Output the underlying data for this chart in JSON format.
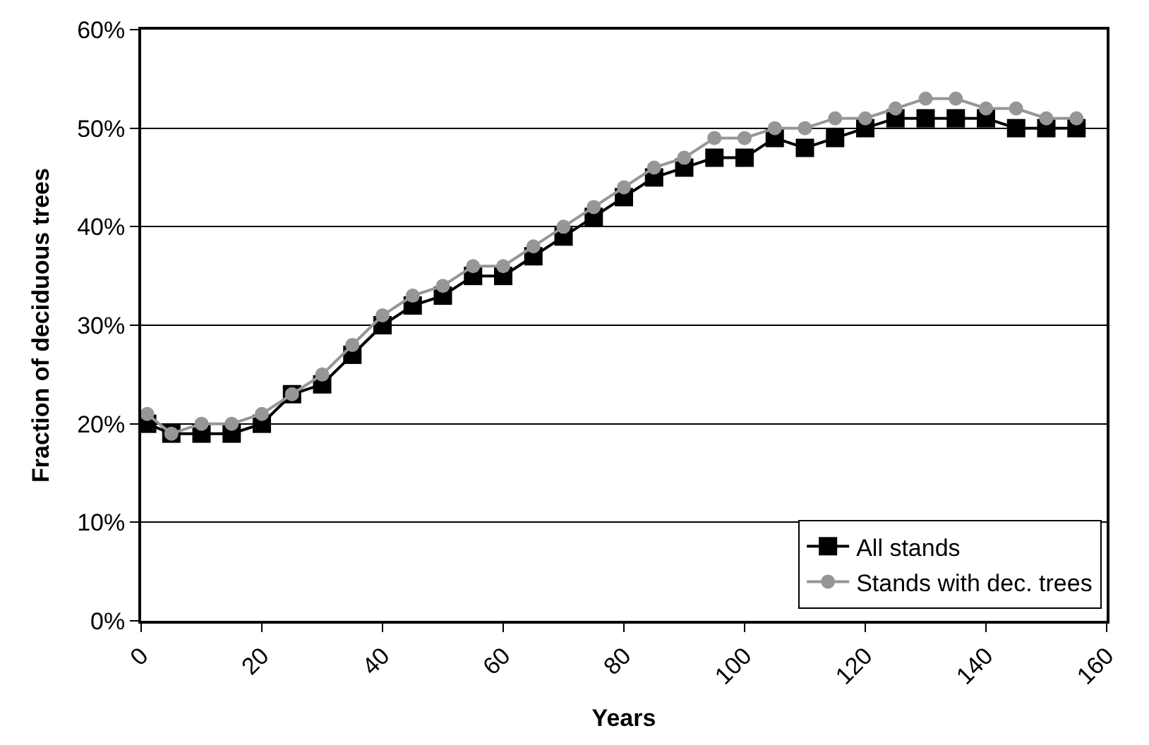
{
  "chart_data": {
    "type": "line",
    "xlabel": "Years",
    "ylabel": "Fraction of deciduous trees",
    "x": [
      1,
      5,
      10,
      15,
      20,
      25,
      30,
      35,
      40,
      45,
      50,
      55,
      60,
      65,
      70,
      75,
      80,
      85,
      90,
      95,
      100,
      105,
      110,
      115,
      120,
      125,
      130,
      135,
      140,
      145,
      150,
      155
    ],
    "series": [
      {
        "name": "All stands",
        "color": "#000000",
        "marker": "square",
        "values": [
          0.2,
          0.19,
          0.19,
          0.19,
          0.2,
          0.23,
          0.24,
          0.27,
          0.3,
          0.32,
          0.33,
          0.35,
          0.35,
          0.37,
          0.39,
          0.41,
          0.43,
          0.45,
          0.46,
          0.47,
          0.47,
          0.49,
          0.48,
          0.49,
          0.5,
          0.51,
          0.51,
          0.51,
          0.51,
          0.5,
          0.5,
          0.5
        ]
      },
      {
        "name": "Stands with dec. trees",
        "color": "#969696",
        "marker": "circle",
        "values": [
          0.21,
          0.19,
          0.2,
          0.2,
          0.21,
          0.23,
          0.25,
          0.28,
          0.31,
          0.33,
          0.34,
          0.36,
          0.36,
          0.38,
          0.4,
          0.42,
          0.44,
          0.46,
          0.47,
          0.49,
          0.49,
          0.5,
          0.5,
          0.51,
          0.51,
          0.52,
          0.53,
          0.53,
          0.52,
          0.52,
          0.51,
          0.51
        ]
      }
    ],
    "xlim": [
      0,
      160
    ],
    "xticks": [
      0,
      20,
      40,
      60,
      80,
      100,
      120,
      140,
      160
    ],
    "ylim": [
      0,
      0.6
    ],
    "yticks": [
      {
        "value": 0,
        "label": "0%"
      },
      {
        "value": 0.1,
        "label": "10%"
      },
      {
        "value": 0.2,
        "label": "20%"
      },
      {
        "value": 0.3,
        "label": "30%"
      },
      {
        "value": 0.4,
        "label": "40%"
      },
      {
        "value": 0.5,
        "label": "50%"
      },
      {
        "value": 0.6,
        "label": "60%"
      }
    ],
    "grid": "y",
    "legend": "bottom right",
    "line_style": "solid"
  }
}
